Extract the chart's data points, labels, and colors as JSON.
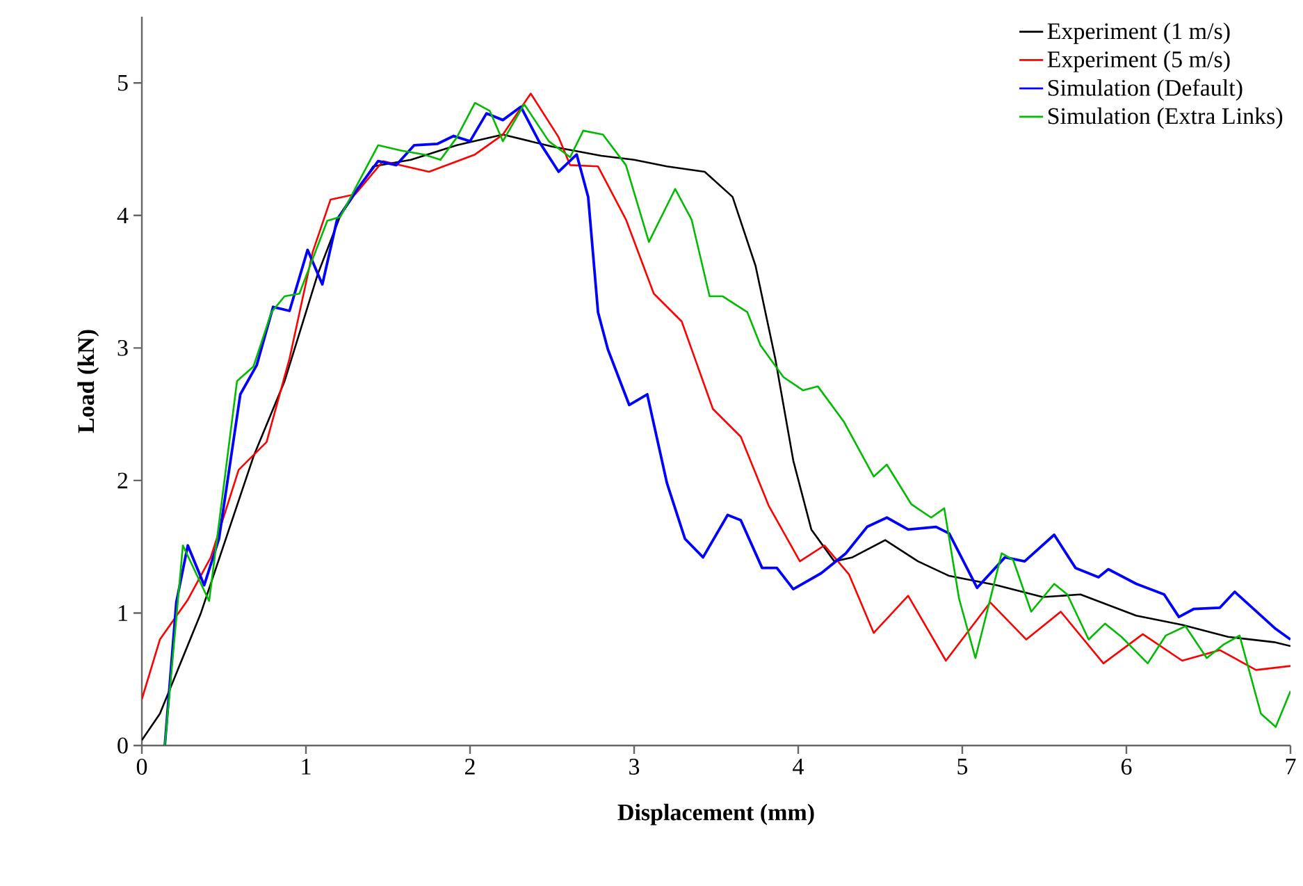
{
  "chart_data": {
    "type": "line",
    "xlabel": "Displacement (mm)",
    "ylabel": "Load (kN)",
    "xlim": [
      0,
      7
    ],
    "ylim": [
      0,
      5.5
    ],
    "xticks": [
      0,
      1,
      2,
      3,
      4,
      5,
      6,
      7
    ],
    "yticks": [
      0,
      1,
      2,
      3,
      4,
      5
    ],
    "grid": false,
    "legend": "top right",
    "series": [
      {
        "name": "Experiment (1 m/s)",
        "color": "#000000",
        "x": [
          0,
          0.11,
          0.36,
          0.68,
          0.87,
          1.07,
          1.21,
          1.41,
          1.64,
          1.92,
          2.2,
          2.5,
          2.8,
          3.0,
          3.2,
          3.43,
          3.6,
          3.74,
          3.86,
          3.97,
          4.08,
          4.22,
          4.33,
          4.53,
          4.73,
          4.92,
          5.21,
          5.49,
          5.72,
          6.06,
          6.34,
          6.62,
          6.9,
          7
        ],
        "values": [
          0.04,
          0.24,
          1.0,
          2.18,
          2.75,
          3.55,
          4.0,
          4.37,
          4.42,
          4.53,
          4.61,
          4.52,
          4.45,
          4.42,
          4.37,
          4.33,
          4.14,
          3.62,
          2.92,
          2.15,
          1.63,
          1.39,
          1.42,
          1.55,
          1.39,
          1.28,
          1.21,
          1.12,
          1.14,
          0.98,
          0.91,
          0.82,
          0.78,
          0.75
        ]
      },
      {
        "name": "Experiment (5 m/s)",
        "color": "#ff0000",
        "x": [
          0,
          0.11,
          0.28,
          0.42,
          0.59,
          0.76,
          0.9,
          1.04,
          1.15,
          1.3,
          1.47,
          1.75,
          2.03,
          2.2,
          2.37,
          2.54,
          2.61,
          2.78,
          2.95,
          3.12,
          3.29,
          3.48,
          3.65,
          3.82,
          4.01,
          4.16,
          4.31,
          4.46,
          4.67,
          4.9,
          5.17,
          5.39,
          5.6,
          5.86,
          6.1,
          6.34,
          6.57,
          6.79,
          7
        ],
        "values": [
          0.35,
          0.8,
          1.1,
          1.42,
          2.08,
          2.29,
          2.92,
          3.72,
          4.12,
          4.16,
          4.41,
          4.33,
          4.46,
          4.61,
          4.92,
          4.59,
          4.38,
          4.37,
          3.97,
          3.41,
          3.2,
          2.54,
          2.33,
          1.81,
          1.39,
          1.51,
          1.29,
          0.85,
          1.13,
          0.64,
          1.08,
          0.8,
          1.01,
          0.62,
          0.84,
          0.64,
          0.72,
          0.57,
          0.6
        ]
      },
      {
        "name": "Simulation (Default)",
        "color": "#0000ff",
        "x": [
          0.14,
          0.21,
          0.28,
          0.38,
          0.47,
          0.6,
          0.7,
          0.8,
          0.9,
          1.01,
          1.1,
          1.19,
          1.32,
          1.44,
          1.55,
          1.66,
          1.8,
          1.9,
          2.0,
          2.1,
          2.2,
          2.31,
          2.42,
          2.54,
          2.65,
          2.72,
          2.78,
          2.84,
          2.97,
          3.08,
          3.2,
          3.31,
          3.42,
          3.57,
          3.65,
          3.78,
          3.87,
          3.97,
          4.14,
          4.29,
          4.42,
          4.54,
          4.67,
          4.84,
          4.92,
          5.09,
          5.26,
          5.38,
          5.56,
          5.69,
          5.83,
          5.89,
          6.06,
          6.23,
          6.32,
          6.41,
          6.57,
          6.66,
          6.91,
          7
        ],
        "values": [
          0,
          1.08,
          1.51,
          1.21,
          1.56,
          2.65,
          2.87,
          3.31,
          3.28,
          3.74,
          3.48,
          3.97,
          4.21,
          4.41,
          4.38,
          4.53,
          4.54,
          4.6,
          4.56,
          4.77,
          4.72,
          4.82,
          4.56,
          4.33,
          4.46,
          4.14,
          3.27,
          2.99,
          2.57,
          2.65,
          1.98,
          1.56,
          1.42,
          1.74,
          1.7,
          1.34,
          1.34,
          1.18,
          1.3,
          1.45,
          1.65,
          1.72,
          1.63,
          1.65,
          1.6,
          1.19,
          1.42,
          1.39,
          1.59,
          1.34,
          1.27,
          1.33,
          1.22,
          1.14,
          0.97,
          1.03,
          1.04,
          1.16,
          0.88,
          0.8
        ]
      },
      {
        "name": "Simulation (Extra Links)",
        "color": "#00bb00",
        "x": [
          0.14,
          0.25,
          0.41,
          0.58,
          0.68,
          0.79,
          0.87,
          0.96,
          1.13,
          1.21,
          1.32,
          1.44,
          1.58,
          1.72,
          1.82,
          1.92,
          2.03,
          2.12,
          2.2,
          2.33,
          2.48,
          2.61,
          2.69,
          2.81,
          2.95,
          3.09,
          3.25,
          3.35,
          3.46,
          3.54,
          3.69,
          3.77,
          3.91,
          4.03,
          4.12,
          4.28,
          4.46,
          4.54,
          4.69,
          4.81,
          4.89,
          4.98,
          5.08,
          5.24,
          5.31,
          5.42,
          5.56,
          5.64,
          5.77,
          5.87,
          5.97,
          6.13,
          6.24,
          6.36,
          6.49,
          6.59,
          6.69,
          6.82,
          6.91,
          7
        ],
        "values": [
          0,
          1.51,
          1.09,
          2.75,
          2.86,
          3.27,
          3.39,
          3.41,
          3.96,
          3.99,
          4.25,
          4.53,
          4.49,
          4.46,
          4.42,
          4.59,
          4.85,
          4.79,
          4.56,
          4.84,
          4.56,
          4.44,
          4.64,
          4.61,
          4.38,
          3.8,
          4.2,
          3.97,
          3.39,
          3.39,
          3.27,
          3.02,
          2.78,
          2.68,
          2.71,
          2.44,
          2.03,
          2.12,
          1.82,
          1.72,
          1.79,
          1.11,
          0.66,
          1.45,
          1.4,
          1.01,
          1.22,
          1.14,
          0.8,
          0.92,
          0.82,
          0.62,
          0.83,
          0.9,
          0.66,
          0.76,
          0.83,
          0.24,
          0.14,
          0.41
        ]
      }
    ]
  }
}
